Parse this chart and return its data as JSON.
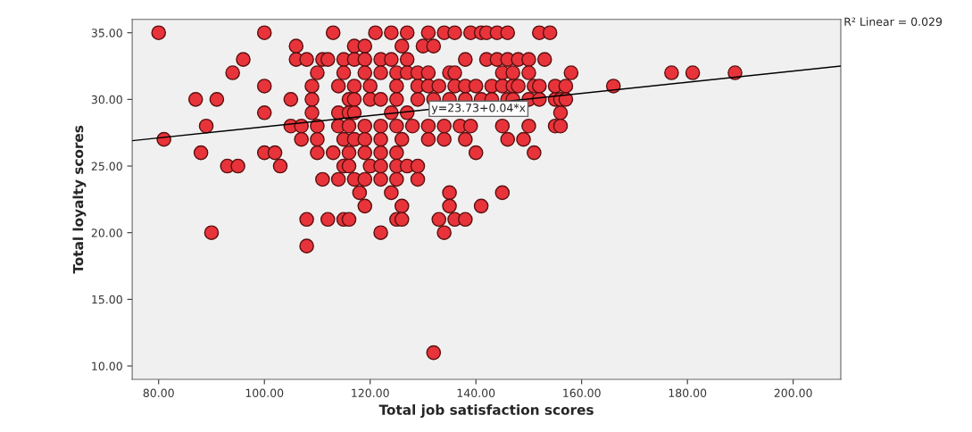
{
  "chart_data": {
    "type": "scatter",
    "xlabel": "Total job satisfaction scores",
    "ylabel": "Total loyalty scores",
    "xlim": [
      75,
      209
    ],
    "ylim": [
      9,
      36
    ],
    "xticks": [
      {
        "value": 80,
        "label": "80.00"
      },
      {
        "value": 100,
        "label": "100.00"
      },
      {
        "value": 120,
        "label": "120.00"
      },
      {
        "value": 140,
        "label": "140.00"
      },
      {
        "value": 160,
        "label": "160.00"
      },
      {
        "value": 180,
        "label": "180.00"
      },
      {
        "value": 200,
        "label": "200.00"
      }
    ],
    "yticks": [
      {
        "value": 10,
        "label": "10.00"
      },
      {
        "value": 15,
        "label": "15.00"
      },
      {
        "value": 20,
        "label": "20.00"
      },
      {
        "value": 25,
        "label": "25.00"
      },
      {
        "value": 30,
        "label": "30.00"
      },
      {
        "value": 35,
        "label": "35.00"
      }
    ],
    "grid": false,
    "legend": false,
    "series": [
      {
        "marker": "circle",
        "color": "#e8333a",
        "x": [
          80,
          100,
          113,
          121,
          124,
          127,
          131,
          134,
          136,
          139,
          141,
          142,
          144,
          146,
          152,
          154,
          106,
          117,
          119,
          126,
          130,
          132,
          96,
          106,
          108,
          111,
          112,
          115,
          117,
          119,
          122,
          124,
          127,
          138,
          142,
          144,
          146,
          148,
          150,
          153,
          94,
          110,
          115,
          119,
          122,
          125,
          127,
          129,
          131,
          135,
          136,
          145,
          147,
          150,
          158,
          177,
          181,
          189,
          100,
          109,
          114,
          117,
          120,
          125,
          129,
          131,
          133,
          136,
          138,
          140,
          143,
          145,
          147,
          148,
          151,
          152,
          155,
          157,
          166,
          87,
          91,
          105,
          109,
          116,
          117,
          120,
          122,
          125,
          129,
          132,
          135,
          138,
          141,
          143,
          146,
          147,
          150,
          152,
          155,
          156,
          157,
          100,
          109,
          114,
          116,
          117,
          124,
          127,
          156,
          89,
          105,
          107,
          110,
          114,
          116,
          119,
          122,
          125,
          128,
          131,
          134,
          137,
          139,
          145,
          150,
          155,
          156,
          81,
          107,
          110,
          115,
          117,
          119,
          122,
          126,
          131,
          134,
          138,
          146,
          149,
          88,
          100,
          102,
          110,
          113,
          116,
          119,
          122,
          125,
          140,
          151,
          93,
          95,
          103,
          115,
          116,
          120,
          122,
          125,
          127,
          129,
          111,
          114,
          117,
          119,
          122,
          125,
          129,
          118,
          124,
          135,
          145,
          119,
          126,
          135,
          141,
          108,
          112,
          115,
          116,
          125,
          126,
          133,
          136,
          138,
          90,
          122,
          134,
          108,
          132
        ],
        "values": [
          35,
          35,
          35,
          35,
          35,
          35,
          35,
          35,
          35,
          35,
          35,
          35,
          35,
          35,
          35,
          35,
          34,
          34,
          34,
          34,
          34,
          34,
          33,
          33,
          33,
          33,
          33,
          33,
          33,
          33,
          33,
          33,
          33,
          33,
          33,
          33,
          33,
          33,
          33,
          33,
          32,
          32,
          32,
          32,
          32,
          32,
          32,
          32,
          32,
          32,
          32,
          32,
          32,
          32,
          32,
          32,
          32,
          32,
          31,
          31,
          31,
          31,
          31,
          31,
          31,
          31,
          31,
          31,
          31,
          31,
          31,
          31,
          31,
          31,
          31,
          31,
          31,
          31,
          31,
          30,
          30,
          30,
          30,
          30,
          30,
          30,
          30,
          30,
          30,
          30,
          30,
          30,
          30,
          30,
          30,
          30,
          30,
          30,
          30,
          30,
          30,
          29,
          29,
          29,
          29,
          29,
          29,
          29,
          29,
          28,
          28,
          28,
          28,
          28,
          28,
          28,
          28,
          28,
          28,
          28,
          28,
          28,
          28,
          28,
          28,
          28,
          28,
          27,
          27,
          27,
          27,
          27,
          27,
          27,
          27,
          27,
          27,
          27,
          27,
          27,
          26,
          26,
          26,
          26,
          26,
          26,
          26,
          26,
          26,
          26,
          26,
          25,
          25,
          25,
          25,
          25,
          25,
          25,
          25,
          25,
          25,
          24,
          24,
          24,
          24,
          24,
          24,
          24,
          23,
          23,
          23,
          23,
          22,
          22,
          22,
          22,
          21,
          21,
          21,
          21,
          21,
          21,
          21,
          21,
          21,
          20,
          20,
          20,
          19,
          11
        ]
      },
      {
        "type": "line",
        "color": "#000000",
        "x": [
          75,
          209
        ],
        "values": [
          26.9,
          32.5
        ]
      }
    ],
    "annotations": [
      {
        "text": "y=23.73+0.04*x",
        "x": 140.5,
        "y": 29.3
      },
      "R² Linear = 0.029"
    ]
  }
}
